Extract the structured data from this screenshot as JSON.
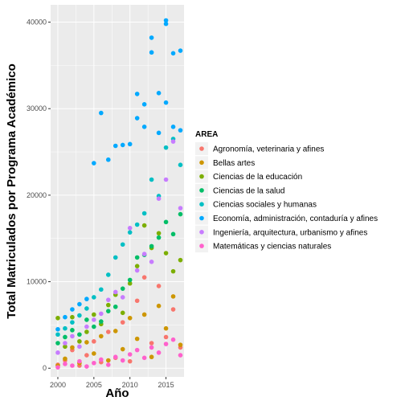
{
  "chart_data": {
    "type": "scatter",
    "xlabel": "Año",
    "ylabel": "Total Matriculados por Programa Académico",
    "xlim": [
      1999,
      2017.5
    ],
    "ylim": [
      -1000,
      42000
    ],
    "x_ticks": [
      2000,
      2005,
      2010,
      2015
    ],
    "y_ticks": [
      0,
      10000,
      20000,
      30000,
      40000
    ],
    "grid": true,
    "legend_position": "right",
    "legend_title": "AREA",
    "series": [
      {
        "name": "Agronomía, veterinaria y afines",
        "color": "#F8766D",
        "points": [
          [
            2000,
            400
          ],
          [
            2001,
            900
          ],
          [
            2002,
            2100
          ],
          [
            2003,
            300
          ],
          [
            2004,
            1500
          ],
          [
            2005,
            3100
          ],
          [
            2006,
            700
          ],
          [
            2007,
            4200
          ],
          [
            2008,
            1200
          ],
          [
            2009,
            5300
          ],
          [
            2010,
            800
          ],
          [
            2011,
            7800
          ],
          [
            2012,
            10500
          ],
          [
            2013,
            2900
          ],
          [
            2014,
            9500
          ],
          [
            2015,
            3600
          ],
          [
            2016,
            6800
          ],
          [
            2017,
            2400
          ]
        ]
      },
      {
        "name": "Bellas artes",
        "color": "#CD9600",
        "points": [
          [
            2000,
            300
          ],
          [
            2001,
            1100
          ],
          [
            2002,
            2400
          ],
          [
            2003,
            600
          ],
          [
            2004,
            3000
          ],
          [
            2005,
            1700
          ],
          [
            2006,
            3700
          ],
          [
            2007,
            900
          ],
          [
            2008,
            4300
          ],
          [
            2009,
            2200
          ],
          [
            2010,
            5800
          ],
          [
            2011,
            3400
          ],
          [
            2012,
            6200
          ],
          [
            2013,
            1300
          ],
          [
            2014,
            7200
          ],
          [
            2015,
            4600
          ],
          [
            2016,
            8300
          ],
          [
            2017,
            2700
          ]
        ]
      },
      {
        "name": "Ciencias de la educación",
        "color": "#7CAE00",
        "points": [
          [
            2000,
            5800
          ],
          [
            2001,
            2500
          ],
          [
            2002,
            5900
          ],
          [
            2003,
            3100
          ],
          [
            2004,
            4200
          ],
          [
            2005,
            6200
          ],
          [
            2006,
            5100
          ],
          [
            2007,
            7300
          ],
          [
            2008,
            8500
          ],
          [
            2009,
            6400
          ],
          [
            2010,
            9800
          ],
          [
            2011,
            11800
          ],
          [
            2012,
            16500
          ],
          [
            2013,
            13900
          ],
          [
            2014,
            15600
          ],
          [
            2015,
            13300
          ],
          [
            2016,
            11200
          ],
          [
            2017,
            12500
          ]
        ]
      },
      {
        "name": "Ciencias de la salud",
        "color": "#00BE67",
        "points": [
          [
            2000,
            2900
          ],
          [
            2001,
            3600
          ],
          [
            2002,
            4400
          ],
          [
            2003,
            3900
          ],
          [
            2004,
            5600
          ],
          [
            2005,
            4800
          ],
          [
            2006,
            5400
          ],
          [
            2007,
            6600
          ],
          [
            2008,
            7100
          ],
          [
            2009,
            9200
          ],
          [
            2010,
            10200
          ],
          [
            2011,
            12800
          ],
          [
            2012,
            13100
          ],
          [
            2013,
            14100
          ],
          [
            2014,
            15100
          ],
          [
            2015,
            16900
          ],
          [
            2016,
            15500
          ],
          [
            2017,
            17800
          ]
        ]
      },
      {
        "name": "Ciencias sociales y humanas",
        "color": "#00BFC4",
        "points": [
          [
            2000,
            3900
          ],
          [
            2001,
            4600
          ],
          [
            2002,
            5300
          ],
          [
            2003,
            6100
          ],
          [
            2004,
            6900
          ],
          [
            2005,
            8200
          ],
          [
            2006,
            9100
          ],
          [
            2007,
            10800
          ],
          [
            2008,
            12800
          ],
          [
            2009,
            14300
          ],
          [
            2010,
            15700
          ],
          [
            2011,
            16600
          ],
          [
            2012,
            17900
          ],
          [
            2013,
            21800
          ],
          [
            2014,
            19900
          ],
          [
            2015,
            25500
          ],
          [
            2016,
            26500
          ],
          [
            2017,
            23500
          ]
        ]
      },
      {
        "name": "Economía, administración, contaduría y afines",
        "color": "#00A9FF",
        "points": [
          [
            2000,
            4500
          ],
          [
            2001,
            5900
          ],
          [
            2002,
            6800
          ],
          [
            2003,
            7400
          ],
          [
            2004,
            8000
          ],
          [
            2005,
            23700
          ],
          [
            2006,
            29500
          ],
          [
            2007,
            24100
          ],
          [
            2008,
            25700
          ],
          [
            2009,
            25800
          ],
          [
            2010,
            25900
          ],
          [
            2011,
            31700
          ],
          [
            2012,
            30500
          ],
          [
            2013,
            38200
          ],
          [
            2014,
            31800
          ],
          [
            2015,
            40200
          ],
          [
            2016,
            36400
          ],
          [
            2017,
            36700
          ],
          [
            2015,
            39800
          ],
          [
            2016,
            27900
          ],
          [
            2013,
            36500
          ],
          [
            2012,
            27900
          ],
          [
            2011,
            28900
          ],
          [
            2014,
            27200
          ],
          [
            2015,
            30700
          ],
          [
            2017,
            27500
          ]
        ]
      },
      {
        "name": "Ingeniería, arquitectura, urbanismo y afines",
        "color": "#C77CFF",
        "points": [
          [
            2000,
            1800
          ],
          [
            2001,
            2900
          ],
          [
            2002,
            3700
          ],
          [
            2003,
            2500
          ],
          [
            2004,
            4800
          ],
          [
            2005,
            5600
          ],
          [
            2006,
            6300
          ],
          [
            2007,
            7900
          ],
          [
            2008,
            8800
          ],
          [
            2009,
            8200
          ],
          [
            2010,
            16200
          ],
          [
            2011,
            11300
          ],
          [
            2012,
            13200
          ],
          [
            2013,
            12300
          ],
          [
            2014,
            19600
          ],
          [
            2015,
            21800
          ],
          [
            2016,
            26200
          ],
          [
            2017,
            18500
          ]
        ]
      },
      {
        "name": "Matemáticas y ciencias naturales",
        "color": "#FF61CC",
        "points": [
          [
            2000,
            100
          ],
          [
            2001,
            500
          ],
          [
            2002,
            300
          ],
          [
            2003,
            800
          ],
          [
            2004,
            200
          ],
          [
            2005,
            600
          ],
          [
            2006,
            1000
          ],
          [
            2007,
            400
          ],
          [
            2008,
            1300
          ],
          [
            2009,
            900
          ],
          [
            2010,
            1600
          ],
          [
            2011,
            2100
          ],
          [
            2012,
            1200
          ],
          [
            2013,
            2400
          ],
          [
            2014,
            1800
          ],
          [
            2015,
            2800
          ],
          [
            2016,
            3300
          ],
          [
            2017,
            1500
          ]
        ]
      }
    ]
  }
}
